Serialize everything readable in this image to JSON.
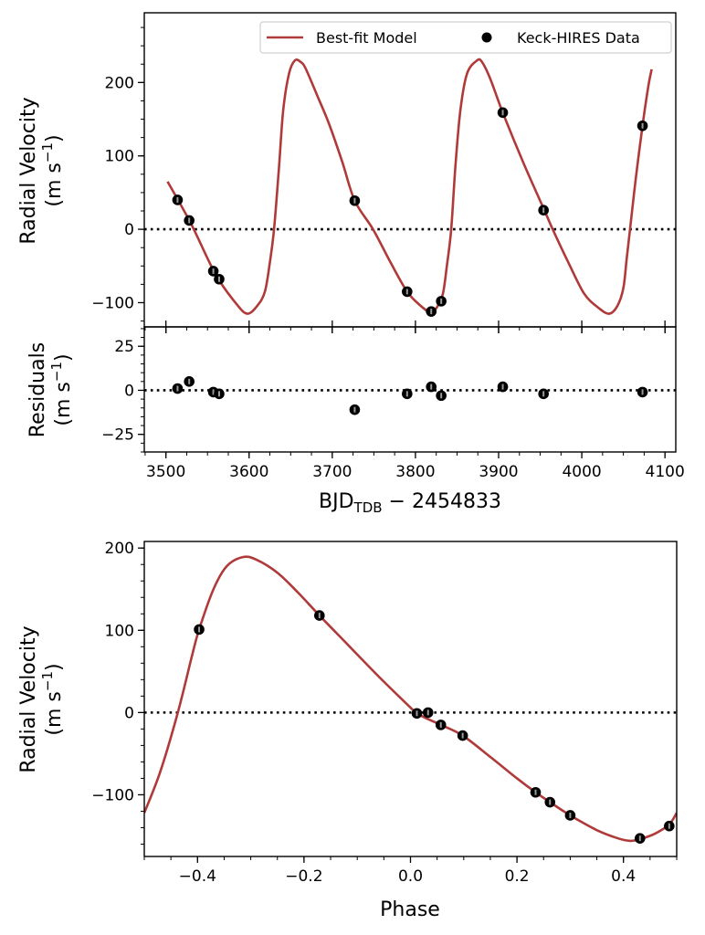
{
  "chart_data": [
    {
      "type": "line",
      "panel": "rv-time",
      "title": "",
      "xlabel_main": "BJD",
      "xlabel_sub": "TDB",
      "xlabel_rest": " − 2454833",
      "ylabel_line1": "Radial Velocity",
      "ylabel_line2": "(m s",
      "ylabel_sup": "−1",
      "ylabel_close": ")",
      "xlim": [
        3474,
        4113
      ],
      "ylim": [
        -133,
        295
      ],
      "xticks": [
        3500,
        3600,
        3700,
        3800,
        3900,
        4000,
        4100
      ],
      "yticks": [
        -100,
        0,
        100,
        200
      ],
      "ytick_labels": [
        "−100",
        "0",
        "100",
        "200"
      ],
      "zero_line": 0,
      "legend": {
        "placement": "top-right",
        "entries": [
          {
            "label": "Best-fit Model",
            "marker": "line"
          },
          {
            "label": "Keck-HIRES Data",
            "marker": "circle"
          }
        ]
      },
      "series": [
        {
          "name": "Best-fit Model",
          "color": "#b03a3a",
          "points": [
            [
              3502,
              65
            ],
            [
              3530,
              8
            ],
            [
              3560,
              -62
            ],
            [
              3585,
              -102
            ],
            [
              3598,
              -115
            ],
            [
              3610,
              -104
            ],
            [
              3619,
              -85
            ],
            [
              3625,
              -45
            ],
            [
              3630,
              0
            ],
            [
              3636,
              85
            ],
            [
              3641,
              162
            ],
            [
              3648,
              212
            ],
            [
              3655,
              230
            ],
            [
              3662,
              228
            ],
            [
              3668,
              219
            ],
            [
              3682,
              182
            ],
            [
              3696,
              144
            ],
            [
              3712,
              92
            ],
            [
              3727,
              39
            ],
            [
              3749,
              0
            ],
            [
              3770,
              -45
            ],
            [
              3790,
              -85
            ],
            [
              3806,
              -104
            ],
            [
              3818,
              -113
            ],
            [
              3826,
              -106
            ],
            [
              3833,
              -88
            ],
            [
              3838,
              -48
            ],
            [
              3843,
              0
            ],
            [
              3848,
              85
            ],
            [
              3854,
              162
            ],
            [
              3862,
              212
            ],
            [
              3874,
              230
            ],
            [
              3880,
              228
            ],
            [
              3890,
              205
            ],
            [
              3905,
              159
            ],
            [
              3930,
              90
            ],
            [
              3955,
              26
            ],
            [
              3965,
              0
            ],
            [
              3985,
              -48
            ],
            [
              4003,
              -88
            ],
            [
              4020,
              -107
            ],
            [
              4033,
              -115
            ],
            [
              4043,
              -104
            ],
            [
              4050,
              -80
            ],
            [
              4054,
              -40
            ],
            [
              4058,
              0
            ],
            [
              4065,
              70
            ],
            [
              4073,
              141
            ],
            [
              4080,
              195
            ],
            [
              4084,
              218
            ]
          ]
        },
        {
          "name": "Keck-HIRES Data",
          "color": "#000000",
          "x": [
            3514,
            3528,
            3557,
            3564,
            3727,
            3790,
            3819,
            3831,
            3905,
            3954,
            4073
          ],
          "y": [
            40,
            12,
            -57,
            -68,
            39,
            -85,
            -112,
            -98,
            159,
            26,
            141
          ]
        }
      ]
    },
    {
      "type": "scatter",
      "panel": "residuals",
      "ylabel_line1": "Residuals",
      "ylabel_line2": "(m s",
      "ylabel_sup": "−1",
      "ylabel_close": ")",
      "xlim": [
        3474,
        4113
      ],
      "ylim": [
        -35,
        36
      ],
      "xticks": [
        3500,
        3600,
        3700,
        3800,
        3900,
        4000,
        4100
      ],
      "xtick_labels": [
        "3500",
        "3600",
        "3700",
        "3800",
        "3900",
        "4000",
        "4100"
      ],
      "yticks": [
        -25,
        0,
        25
      ],
      "ytick_labels": [
        "−25",
        "0",
        "25"
      ],
      "zero_line": 0,
      "series": [
        {
          "name": "Residuals",
          "color": "#000000",
          "x": [
            3514,
            3528,
            3557,
            3564,
            3727,
            3790,
            3819,
            3831,
            3905,
            3954,
            4073
          ],
          "y": [
            1,
            5,
            -1,
            -2,
            -11,
            -2,
            2,
            -3,
            2,
            -2,
            -1
          ]
        }
      ]
    },
    {
      "type": "line",
      "panel": "rv-phase",
      "xlabel": "Phase",
      "ylabel_line1": "Radial Velocity",
      "ylabel_line2": "(m s",
      "ylabel_sup": "−1",
      "ylabel_close": ")",
      "xlim": [
        -0.5,
        0.5
      ],
      "ylim": [
        -175,
        208
      ],
      "xticks": [
        -0.4,
        -0.2,
        0.0,
        0.2,
        0.4
      ],
      "xtick_labels": [
        "−0.4",
        "−0.2",
        "0.0",
        "0.2",
        "0.4"
      ],
      "yticks": [
        -100,
        0,
        100,
        200
      ],
      "ytick_labels": [
        "−100",
        "0",
        "100",
        "200"
      ],
      "zero_line": 0,
      "series": [
        {
          "name": "Best-fit Model",
          "color": "#b03a3a",
          "points": [
            [
              -0.5,
              -122
            ],
            [
              -0.47,
              -72
            ],
            [
              -0.437,
              0
            ],
            [
              -0.41,
              70
            ],
            [
              -0.397,
              101
            ],
            [
              -0.37,
              150
            ],
            [
              -0.345,
              178
            ],
            [
              -0.315,
              189
            ],
            [
              -0.29,
              186
            ],
            [
              -0.25,
              170
            ],
            [
              -0.21,
              145
            ],
            [
              -0.171,
              118
            ],
            [
              -0.12,
              84
            ],
            [
              -0.06,
              44
            ],
            [
              0.0,
              6
            ],
            [
              0.012,
              -1
            ],
            [
              0.033,
              -8
            ],
            [
              0.057,
              -15
            ],
            [
              0.098,
              -28
            ],
            [
              0.15,
              -54
            ],
            [
              0.2,
              -80
            ],
            [
              0.235,
              -97
            ],
            [
              0.262,
              -109
            ],
            [
              0.3,
              -125
            ],
            [
              0.35,
              -143
            ],
            [
              0.39,
              -153
            ],
            [
              0.413,
              -156
            ],
            [
              0.431,
              -154
            ],
            [
              0.46,
              -147
            ],
            [
              0.486,
              -136
            ],
            [
              0.5,
              -122
            ]
          ]
        },
        {
          "name": "Keck-HIRES Data",
          "color": "#000000",
          "x": [
            -0.397,
            -0.171,
            0.012,
            0.033,
            0.057,
            0.098,
            0.235,
            0.262,
            0.3,
            0.431,
            0.486
          ],
          "y": [
            101,
            118,
            -1,
            0,
            -15,
            -28,
            -97,
            -109,
            -125,
            -153,
            -138
          ]
        }
      ]
    }
  ]
}
